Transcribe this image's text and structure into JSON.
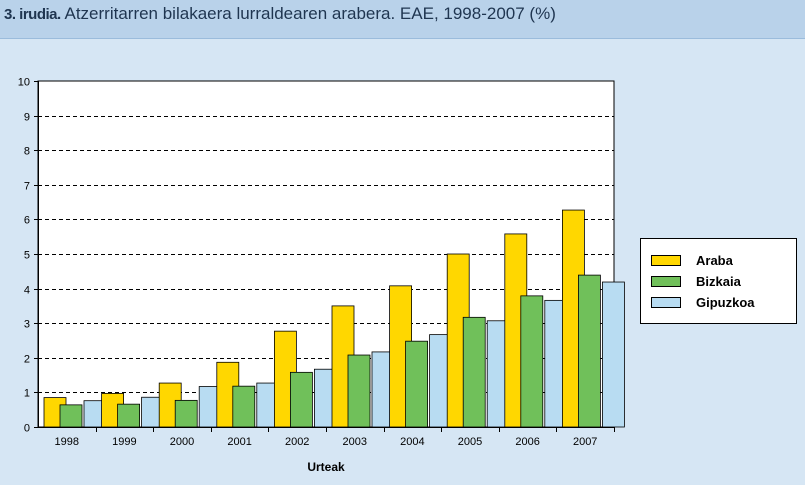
{
  "header": {
    "label": "3. irudia.",
    "title": "Atzerritarren bilakaera lurraldearen arabera. EAE, 1998-2007 (%)"
  },
  "chart_data": {
    "type": "bar",
    "categories": [
      "1998",
      "1999",
      "2000",
      "2001",
      "2002",
      "2003",
      "2004",
      "2005",
      "2006",
      "2007"
    ],
    "series": [
      {
        "name": "Araba",
        "color": "#ffd700",
        "values": [
          0.85,
          0.97,
          1.27,
          1.87,
          2.77,
          3.5,
          4.08,
          5.0,
          5.58,
          6.27
        ]
      },
      {
        "name": "Bizkaia",
        "color": "#70c05a",
        "values": [
          0.64,
          0.66,
          0.77,
          1.18,
          1.58,
          2.08,
          2.48,
          3.17,
          3.79,
          4.39
        ]
      },
      {
        "name": "Gipuzkoa",
        "color": "#b8dcf2",
        "values": [
          0.76,
          0.86,
          1.17,
          1.27,
          1.67,
          2.17,
          2.67,
          3.07,
          3.66,
          4.19
        ]
      }
    ],
    "xlabel": "Urteak",
    "ylabel": "",
    "ylim": [
      0,
      10
    ],
    "yticks": [
      "0",
      "1",
      "2",
      "3",
      "4",
      "5",
      "6",
      "7",
      "8",
      "9",
      "10"
    ],
    "grid": true,
    "legend_position": "right"
  }
}
